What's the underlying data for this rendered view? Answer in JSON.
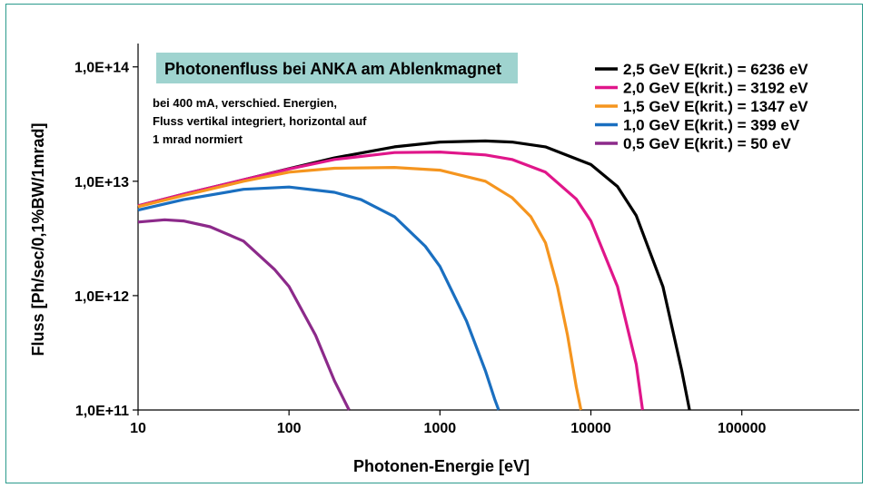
{
  "chart_data": {
    "type": "line",
    "title": "Photonenfluss bei ANKA am Ablenkmagnet",
    "subtitle_lines": [
      "bei 400 mA, verschied. Energien,",
      "Fluss vertikal integriert, horizontal auf",
      "1 mrad normiert"
    ],
    "xlabel": "Photonen-Energie [eV]",
    "ylabel": "Fluss [Ph/sec/0,1%BW/1mrad]",
    "x_scale": "log",
    "y_scale": "log",
    "xlim": [
      10,
      600000
    ],
    "ylim": [
      100000000000.0,
      160000000000000.0
    ],
    "x_ticks": [
      10,
      100,
      1000,
      10000,
      100000
    ],
    "x_tick_labels": [
      "10",
      "100",
      "1000",
      "10000",
      "100000"
    ],
    "y_ticks": [
      100000000000.0,
      1000000000000.0,
      10000000000000.0,
      100000000000000.0
    ],
    "y_tick_labels": [
      "1,0E+11",
      "1,0E+12",
      "1,0E+13",
      "1,0E+14"
    ],
    "grid": false,
    "legend_position": "top-right",
    "title_box_color": "#9fd3cf",
    "frame_color": "#2a9a8c",
    "series": [
      {
        "name": "2,5 GeV E(krit.) = 6236 eV",
        "color": "#000000",
        "x": [
          10,
          20,
          50,
          100,
          200,
          500,
          1000,
          2000,
          3000,
          5000,
          10000,
          15000,
          20000,
          30000,
          40000,
          45000
        ],
        "y": [
          6100000000000.0,
          7700000000000.0,
          10300000000000.0,
          12900000000000.0,
          16000000000000.0,
          20000000000000.0,
          22000000000000.0,
          22500000000000.0,
          22000000000000.0,
          20000000000000.0,
          14000000000000.0,
          9000000000000.0,
          5000000000000.0,
          1200000000000.0,
          220000000000.0,
          100000000000.0
        ]
      },
      {
        "name": "2,0 GeV E(krit.) = 3192 eV",
        "color": "#e0168a",
        "x": [
          10,
          20,
          50,
          100,
          200,
          500,
          1000,
          2000,
          3000,
          5000,
          8000,
          10000,
          15000,
          20000,
          22000
        ],
        "y": [
          6100000000000.0,
          7700000000000.0,
          10300000000000.0,
          12800000000000.0,
          15500000000000.0,
          17800000000000.0,
          18000000000000.0,
          17000000000000.0,
          15500000000000.0,
          12000000000000.0,
          7000000000000.0,
          4500000000000.0,
          1200000000000.0,
          250000000000.0,
          100000000000.0
        ]
      },
      {
        "name": "1,5 GeV E(krit.) = 1347 eV",
        "color": "#f5951f",
        "x": [
          10,
          20,
          50,
          100,
          200,
          500,
          1000,
          2000,
          3000,
          4000,
          5000,
          6000,
          7000,
          8000,
          8600
        ],
        "y": [
          6000000000000.0,
          7500000000000.0,
          10000000000000.0,
          12000000000000.0,
          13000000000000.0,
          13200000000000.0,
          12500000000000.0,
          10000000000000.0,
          7200000000000.0,
          4900000000000.0,
          2900000000000.0,
          1200000000000.0,
          450000000000.0,
          160000000000.0,
          100000000000.0
        ]
      },
      {
        "name": "1,0 GeV E(krit.) = 399 eV",
        "color": "#1a6fc0",
        "x": [
          10,
          20,
          50,
          100,
          200,
          300,
          500,
          800,
          1000,
          1500,
          2000,
          2300,
          2450
        ],
        "y": [
          5600000000000.0,
          6900000000000.0,
          8500000000000.0,
          8900000000000.0,
          8000000000000.0,
          6900000000000.0,
          4900000000000.0,
          2700000000000.0,
          1800000000000.0,
          600000000000.0,
          220000000000.0,
          125000000000.0,
          100000000000.0
        ]
      },
      {
        "name": "0,5 GeV E(krit.) = 50 eV",
        "color": "#8c2a8a",
        "x": [
          10,
          15,
          20,
          30,
          50,
          80,
          100,
          150,
          200,
          250
        ],
        "y": [
          4400000000000.0,
          4600000000000.0,
          4500000000000.0,
          4000000000000.0,
          3000000000000.0,
          1700000000000.0,
          1200000000000.0,
          450000000000.0,
          180000000000.0,
          100000000000.0
        ]
      }
    ]
  }
}
